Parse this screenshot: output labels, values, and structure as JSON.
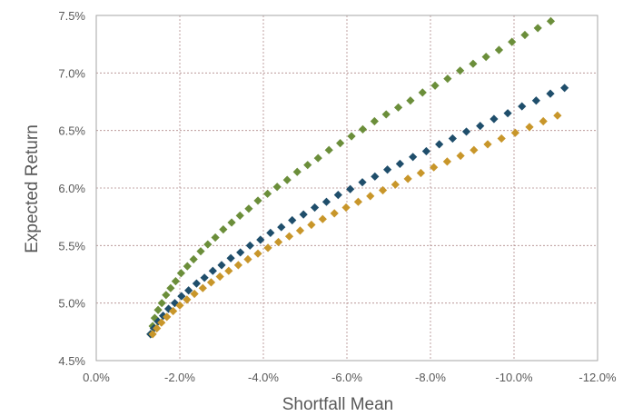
{
  "chart_data": {
    "type": "scatter",
    "title": "",
    "xlabel": "Shortfall Mean",
    "ylabel": "Expected Return",
    "xlim": [
      0,
      -12
    ],
    "ylim": [
      4.5,
      7.5
    ],
    "x_ticks": [
      0,
      -2,
      -4,
      -6,
      -8,
      -10,
      -12
    ],
    "x_tick_labels": [
      "0.0%",
      "-2.0%",
      "-4.0%",
      "-6.0%",
      "-8.0%",
      "-10.0%",
      "-12.0%"
    ],
    "y_ticks": [
      4.5,
      5.0,
      5.5,
      6.0,
      6.5,
      7.0,
      7.5
    ],
    "y_tick_labels": [
      "4.5%",
      "5.0%",
      "5.5%",
      "6.0%",
      "6.5%",
      "7.0%",
      "7.5%"
    ],
    "grid": true,
    "legend": "none",
    "marker": "diamond",
    "series": [
      {
        "color": "#6b8e3a",
        "points": [
          [
            -1.3,
            4.73
          ],
          [
            -1.35,
            4.8
          ],
          [
            -1.4,
            4.87
          ],
          [
            -1.48,
            4.94
          ],
          [
            -1.57,
            5.0
          ],
          [
            -1.67,
            5.07
          ],
          [
            -1.78,
            5.13
          ],
          [
            -1.9,
            5.19
          ],
          [
            -2.03,
            5.26
          ],
          [
            -2.18,
            5.32
          ],
          [
            -2.33,
            5.38
          ],
          [
            -2.5,
            5.45
          ],
          [
            -2.67,
            5.51
          ],
          [
            -2.85,
            5.57
          ],
          [
            -3.04,
            5.64
          ],
          [
            -3.24,
            5.7
          ],
          [
            -3.44,
            5.76
          ],
          [
            -3.65,
            5.82
          ],
          [
            -3.87,
            5.89
          ],
          [
            -4.1,
            5.95
          ],
          [
            -4.33,
            6.01
          ],
          [
            -4.57,
            6.07
          ],
          [
            -4.81,
            6.14
          ],
          [
            -5.06,
            6.2
          ],
          [
            -5.31,
            6.26
          ],
          [
            -5.57,
            6.33
          ],
          [
            -5.84,
            6.39
          ],
          [
            -6.11,
            6.45
          ],
          [
            -6.38,
            6.51
          ],
          [
            -6.66,
            6.58
          ],
          [
            -6.94,
            6.64
          ],
          [
            -7.23,
            6.7
          ],
          [
            -7.52,
            6.76
          ],
          [
            -7.81,
            6.83
          ],
          [
            -8.11,
            6.89
          ],
          [
            -8.41,
            6.95
          ],
          [
            -8.71,
            7.02
          ],
          [
            -9.02,
            7.08
          ],
          [
            -9.33,
            7.14
          ],
          [
            -9.64,
            7.2
          ],
          [
            -9.95,
            7.27
          ],
          [
            -10.26,
            7.33
          ],
          [
            -10.57,
            7.39
          ],
          [
            -10.88,
            7.45
          ]
        ]
      },
      {
        "color": "#1f4e6b",
        "points": [
          [
            -1.3,
            4.73
          ],
          [
            -1.38,
            4.78
          ],
          [
            -1.48,
            4.84
          ],
          [
            -1.6,
            4.89
          ],
          [
            -1.73,
            4.95
          ],
          [
            -1.88,
            5.0
          ],
          [
            -2.04,
            5.06
          ],
          [
            -2.21,
            5.11
          ],
          [
            -2.4,
            5.17
          ],
          [
            -2.59,
            5.22
          ],
          [
            -2.79,
            5.28
          ],
          [
            -3.0,
            5.33
          ],
          [
            -3.22,
            5.39
          ],
          [
            -3.45,
            5.44
          ],
          [
            -3.68,
            5.5
          ],
          [
            -3.93,
            5.55
          ],
          [
            -4.17,
            5.61
          ],
          [
            -4.43,
            5.66
          ],
          [
            -4.69,
            5.72
          ],
          [
            -4.96,
            5.77
          ],
          [
            -5.23,
            5.83
          ],
          [
            -5.51,
            5.88
          ],
          [
            -5.79,
            5.94
          ],
          [
            -6.08,
            5.99
          ],
          [
            -6.37,
            6.05
          ],
          [
            -6.67,
            6.1
          ],
          [
            -6.97,
            6.16
          ],
          [
            -7.27,
            6.21
          ],
          [
            -7.58,
            6.27
          ],
          [
            -7.9,
            6.32
          ],
          [
            -8.21,
            6.38
          ],
          [
            -8.53,
            6.43
          ],
          [
            -8.86,
            6.49
          ],
          [
            -9.19,
            6.54
          ],
          [
            -9.52,
            6.6
          ],
          [
            -9.85,
            6.65
          ],
          [
            -10.19,
            6.71
          ],
          [
            -10.53,
            6.76
          ],
          [
            -10.87,
            6.82
          ],
          [
            -11.21,
            6.87
          ]
        ]
      },
      {
        "color": "#c8962a",
        "points": [
          [
            -1.35,
            4.73
          ],
          [
            -1.45,
            4.78
          ],
          [
            -1.56,
            4.83
          ],
          [
            -1.69,
            4.88
          ],
          [
            -1.84,
            4.93
          ],
          [
            -2.0,
            4.98
          ],
          [
            -2.17,
            5.03
          ],
          [
            -2.35,
            5.08
          ],
          [
            -2.55,
            5.13
          ],
          [
            -2.75,
            5.18
          ],
          [
            -2.96,
            5.23
          ],
          [
            -3.17,
            5.28
          ],
          [
            -3.4,
            5.33
          ],
          [
            -3.63,
            5.38
          ],
          [
            -3.87,
            5.43
          ],
          [
            -4.11,
            5.48
          ],
          [
            -4.36,
            5.53
          ],
          [
            -4.62,
            5.58
          ],
          [
            -4.88,
            5.63
          ],
          [
            -5.15,
            5.68
          ],
          [
            -5.42,
            5.73
          ],
          [
            -5.7,
            5.78
          ],
          [
            -5.98,
            5.83
          ],
          [
            -6.27,
            5.88
          ],
          [
            -6.56,
            5.93
          ],
          [
            -6.86,
            5.98
          ],
          [
            -7.16,
            6.03
          ],
          [
            -7.46,
            6.08
          ],
          [
            -7.77,
            6.13
          ],
          [
            -8.08,
            6.18
          ],
          [
            -8.4,
            6.23
          ],
          [
            -8.72,
            6.28
          ],
          [
            -9.04,
            6.33
          ],
          [
            -9.37,
            6.38
          ],
          [
            -9.7,
            6.43
          ],
          [
            -10.03,
            6.48
          ],
          [
            -10.37,
            6.53
          ],
          [
            -10.7,
            6.58
          ],
          [
            -11.04,
            6.63
          ]
        ]
      }
    ]
  }
}
